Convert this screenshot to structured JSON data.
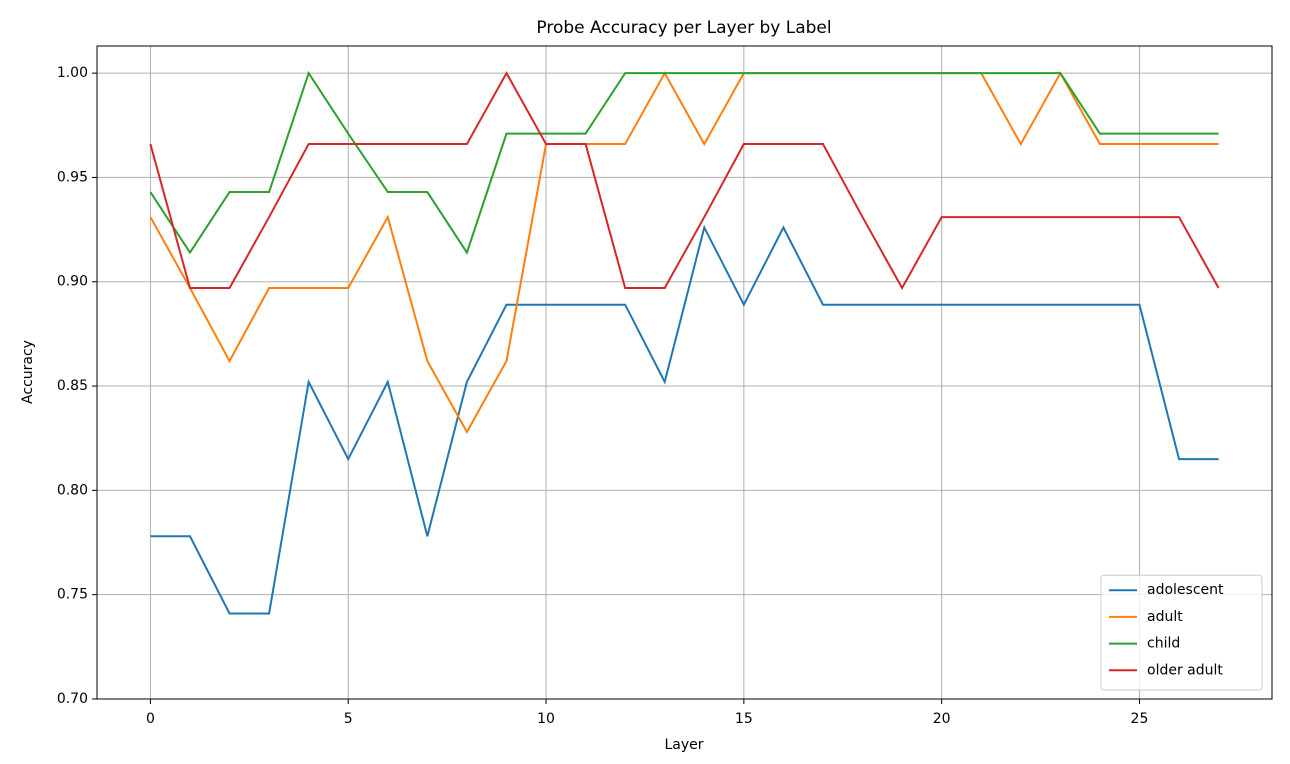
{
  "chart_data": {
    "type": "line",
    "title": "Probe Accuracy per Layer by Label",
    "x_label": "Layer",
    "y_label": "Accuracy",
    "x": [
      0,
      1,
      2,
      3,
      4,
      5,
      6,
      7,
      8,
      9,
      10,
      11,
      12,
      13,
      14,
      15,
      16,
      17,
      18,
      19,
      20,
      21,
      22,
      23,
      24,
      25,
      26,
      27
    ],
    "series": [
      {
        "name": "adolescent",
        "color": "#1f77b4",
        "values": [
          0.778,
          0.778,
          0.741,
          0.741,
          0.852,
          0.815,
          0.852,
          0.778,
          0.852,
          0.889,
          0.889,
          0.889,
          0.889,
          0.852,
          0.926,
          0.889,
          0.926,
          0.889,
          0.889,
          0.889,
          0.889,
          0.889,
          0.889,
          0.889,
          0.889,
          0.889,
          0.815,
          0.815
        ]
      },
      {
        "name": "adult",
        "color": "#ff7f0e",
        "values": [
          0.931,
          0.897,
          0.862,
          0.897,
          0.897,
          0.897,
          0.931,
          0.862,
          0.828,
          0.862,
          0.966,
          0.966,
          0.966,
          1.0,
          0.966,
          1.0,
          1.0,
          1.0,
          1.0,
          1.0,
          1.0,
          1.0,
          0.966,
          1.0,
          0.966,
          0.966,
          0.966,
          0.966
        ]
      },
      {
        "name": "child",
        "color": "#2ca02c",
        "values": [
          0.943,
          0.914,
          0.943,
          0.943,
          1.0,
          0.971,
          0.943,
          0.943,
          0.914,
          0.971,
          0.971,
          0.971,
          1.0,
          1.0,
          1.0,
          1.0,
          1.0,
          1.0,
          1.0,
          1.0,
          1.0,
          1.0,
          1.0,
          1.0,
          0.971,
          0.971,
          0.971,
          0.971
        ]
      },
      {
        "name": "older adult",
        "color": "#d62728",
        "values": [
          0.966,
          0.897,
          0.897,
          0.931,
          0.966,
          0.966,
          0.966,
          0.966,
          0.966,
          1.0,
          0.966,
          0.966,
          0.897,
          0.897,
          0.931,
          0.966,
          0.966,
          0.966,
          0.931,
          0.897,
          0.931,
          0.931,
          0.931,
          0.931,
          0.931,
          0.931,
          0.931,
          0.897
        ]
      }
    ],
    "xlim": [
      -1.35,
      28.35
    ],
    "xticks": [
      0,
      5,
      10,
      15,
      20,
      25
    ],
    "ylim": [
      0.7,
      1.013
    ],
    "yticks": [
      {
        "value": 0.7,
        "label": "0.70"
      },
      {
        "value": 0.75,
        "label": "0.75"
      },
      {
        "value": 0.8,
        "label": "0.80"
      },
      {
        "value": 0.85,
        "label": "0.85"
      },
      {
        "value": 0.9,
        "label": "0.90"
      },
      {
        "value": 0.95,
        "label": "0.95"
      },
      {
        "value": 1.0,
        "label": "1.00"
      }
    ],
    "grid": true,
    "legend": "lower right"
  }
}
